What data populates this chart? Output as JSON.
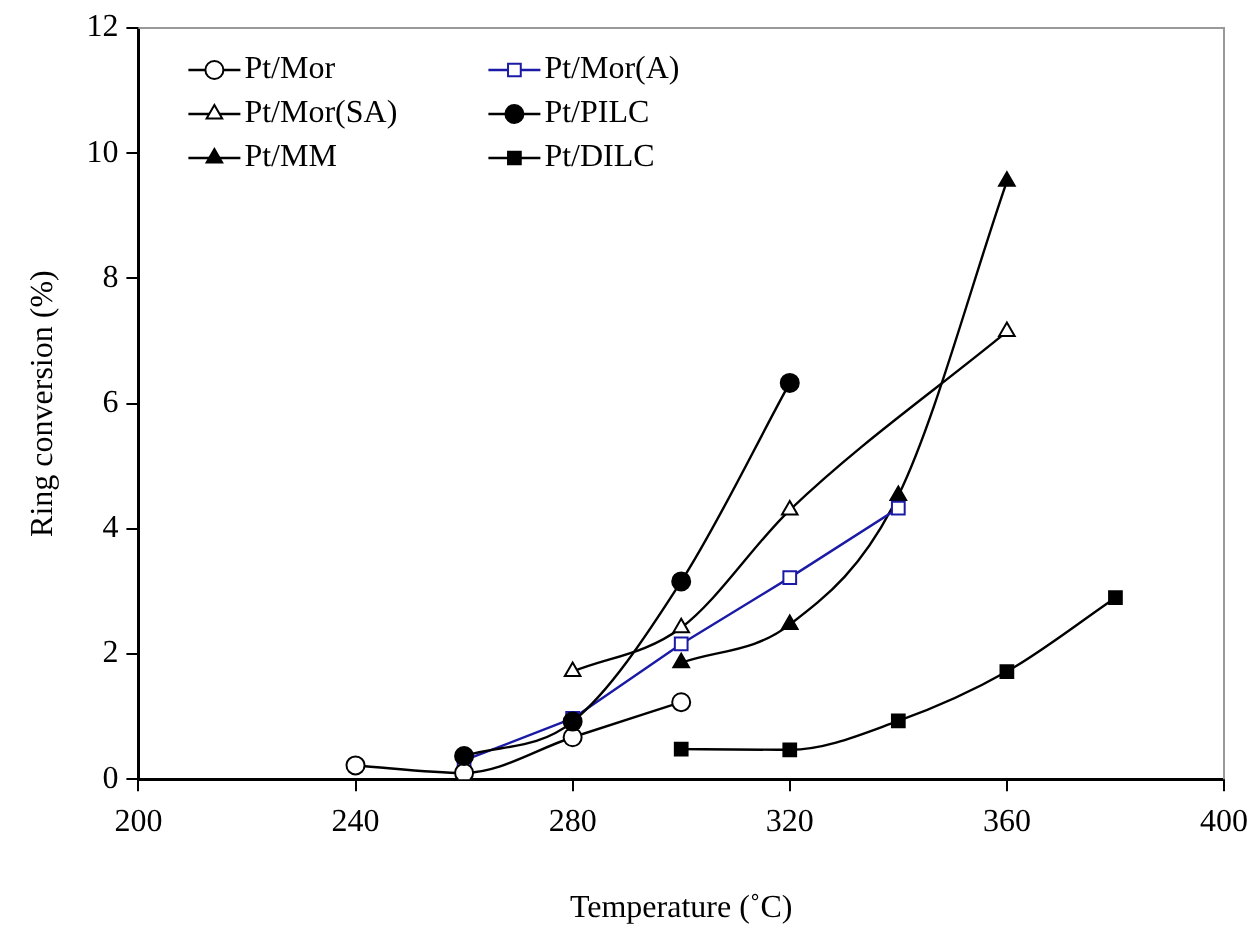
{
  "chart_data": {
    "type": "line",
    "xlabel": "Temperature (˚C)",
    "ylabel": "Ring conversion (%)",
    "xlim": [
      200,
      400
    ],
    "xticks": [
      200,
      240,
      280,
      320,
      360,
      400
    ],
    "ylim": [
      0,
      12
    ],
    "yticks": [
      0,
      2,
      4,
      6,
      8,
      10,
      12
    ],
    "grid": false,
    "legend": "top left",
    "series": [
      {
        "name": "Pt/Mor",
        "color": "#000000",
        "marker": "circle",
        "x": [
          240,
          260,
          280,
          300
        ],
        "values": [
          0.22,
          0.1,
          0.67,
          1.23
        ]
      },
      {
        "name": "Pt/Mor(A)",
        "color": "#1a1aa6",
        "marker": "square",
        "x": [
          260,
          280,
          300,
          320,
          340
        ],
        "values": [
          0.3,
          0.97,
          2.16,
          3.22,
          4.33
        ]
      },
      {
        "name": "Pt/Mor(SA)",
        "color": "#000000",
        "marker": "triangle",
        "x": [
          280,
          300,
          320,
          360
        ],
        "values": [
          1.72,
          2.42,
          4.3,
          7.15
        ]
      },
      {
        "name": "Pt/PILC",
        "color": "#000000",
        "marker": "circle",
        "x": [
          260,
          280,
          300,
          320
        ],
        "values": [
          0.37,
          0.92,
          3.16,
          6.33
        ]
      },
      {
        "name": "Pt/MM",
        "color": "#000000",
        "marker": "triangle",
        "x": [
          300,
          320,
          340,
          360
        ],
        "values": [
          1.86,
          2.47,
          4.53,
          9.55
        ]
      },
      {
        "name": "Pt/DILC",
        "color": "#000000",
        "marker": "square",
        "x": [
          300,
          320,
          340,
          360,
          380
        ],
        "values": [
          0.48,
          0.47,
          0.93,
          1.72,
          2.9
        ]
      }
    ]
  }
}
